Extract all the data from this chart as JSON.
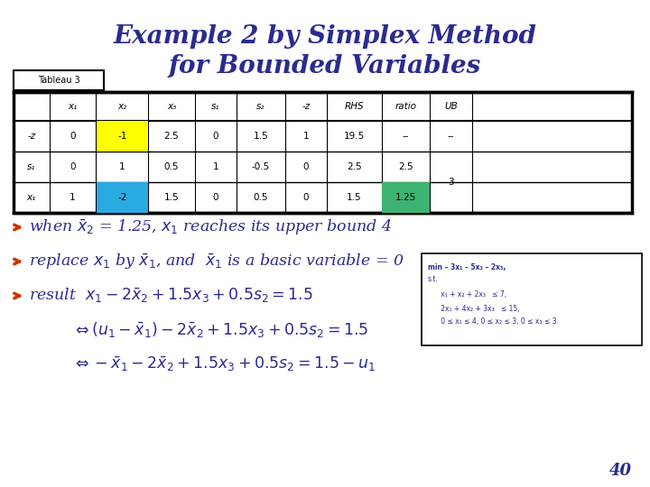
{
  "title_line1": "Example 2 by Simplex Method",
  "title_line2": "for Bounded Variables",
  "title_color": "#2b2b8f",
  "title_fontsize": 20,
  "tableau_label": "Tableau 3",
  "table_headers": [
    "",
    "x₁",
    "x₂",
    "x₃",
    "s₁",
    "s₂",
    "-z",
    "RHS",
    "ratio",
    "UB"
  ],
  "table_rows": [
    [
      "-z",
      "0",
      "-1",
      "2.5",
      "0",
      "1.5",
      "1",
      "19.5",
      "--",
      "--"
    ],
    [
      "s₁",
      "0",
      "1",
      "0.5",
      "1",
      "-0.5",
      "0",
      "2.5",
      "2.5",
      ""
    ],
    [
      "x₁",
      "1",
      "-2",
      "1.5",
      "0",
      "0.5",
      "0",
      "1.5",
      "1.25",
      ""
    ]
  ],
  "cell_ub_shared": "3",
  "bg_color": "#ffffff",
  "text_color": "#2b2b8f",
  "arrow_color": "#cc3300",
  "box_text_lines": [
    "min – 3x₁ – 5x₂ – 2x₃,",
    "s.t.",
    "      x₁ + x₂ + 2x₃   ≤ 7,",
    "      2x₁ + 4x₂ + 3x₃   ≤ 15,",
    "      0 ≤ x₁ ≤ 4, 0 ≤ x₂ ≤ 3, 0 ≤ x₃ ≤ 3."
  ],
  "page_number": "40"
}
